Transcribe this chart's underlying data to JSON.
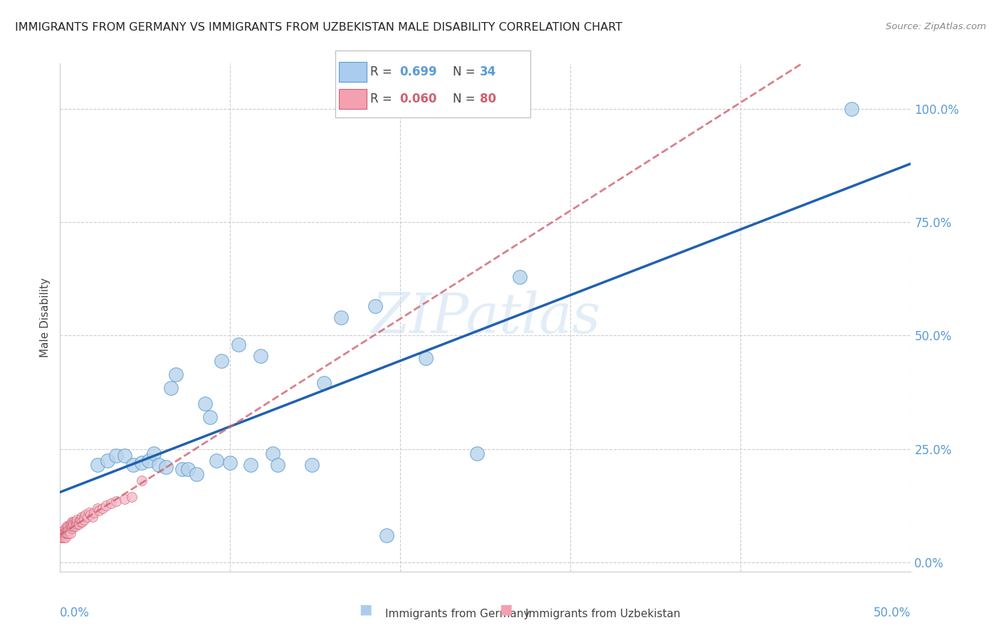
{
  "title": "IMMIGRANTS FROM GERMANY VS IMMIGRANTS FROM UZBEKISTAN MALE DISABILITY CORRELATION CHART",
  "source": "Source: ZipAtlas.com",
  "ylabel_label": "Male Disability",
  "legend_germany": "Immigrants from Germany",
  "legend_uzbekistan": "Immigrants from Uzbekistan",
  "xlim": [
    0.0,
    0.5
  ],
  "ylim": [
    -0.02,
    1.1
  ],
  "xtick_left_label": "0.0%",
  "xtick_right_label": "50.0%",
  "ytick_labels": [
    "0.0%",
    "25.0%",
    "50.0%",
    "75.0%",
    "100.0%"
  ],
  "ytick_vals": [
    0.0,
    0.25,
    0.5,
    0.75,
    1.0
  ],
  "germany_color": "#b8d4ea",
  "germany_edge_color": "#5b9bd5",
  "uzbekistan_color": "#f4b8c8",
  "uzbekistan_edge_color": "#d06070",
  "germany_R": 0.699,
  "germany_N": 34,
  "uzbekistan_R": 0.06,
  "uzbekistan_N": 80,
  "germany_line_color": "#2060b0",
  "uzbekistan_line_color": "#d06070",
  "legend_patch_germany": "#aaccee",
  "legend_patch_uzbekistan": "#f4a0b0",
  "watermark": "ZIPatlas",
  "germany_x": [
    0.022,
    0.028,
    0.033,
    0.038,
    0.043,
    0.048,
    0.052,
    0.055,
    0.058,
    0.062,
    0.065,
    0.068,
    0.072,
    0.075,
    0.08,
    0.085,
    0.088,
    0.092,
    0.095,
    0.1,
    0.105,
    0.112,
    0.118,
    0.125,
    0.128,
    0.148,
    0.155,
    0.165,
    0.185,
    0.192,
    0.215,
    0.245,
    0.27,
    0.465
  ],
  "germany_y": [
    0.215,
    0.225,
    0.235,
    0.235,
    0.215,
    0.22,
    0.225,
    0.24,
    0.215,
    0.21,
    0.385,
    0.415,
    0.205,
    0.205,
    0.195,
    0.35,
    0.32,
    0.225,
    0.445,
    0.22,
    0.48,
    0.215,
    0.455,
    0.24,
    0.215,
    0.215,
    0.395,
    0.54,
    0.565,
    0.06,
    0.45,
    0.24,
    0.63,
    1.0
  ],
  "uzbekistan_x": [
    0.001,
    0.001,
    0.001,
    0.001,
    0.001,
    0.001,
    0.001,
    0.001,
    0.002,
    0.002,
    0.002,
    0.002,
    0.002,
    0.002,
    0.002,
    0.002,
    0.002,
    0.003,
    0.003,
    0.003,
    0.003,
    0.003,
    0.003,
    0.003,
    0.004,
    0.004,
    0.004,
    0.004,
    0.004,
    0.004,
    0.004,
    0.005,
    0.005,
    0.005,
    0.005,
    0.005,
    0.006,
    0.006,
    0.006,
    0.006,
    0.006,
    0.007,
    0.007,
    0.007,
    0.007,
    0.007,
    0.008,
    0.008,
    0.008,
    0.008,
    0.009,
    0.009,
    0.009,
    0.01,
    0.01,
    0.01,
    0.011,
    0.011,
    0.012,
    0.012,
    0.012,
    0.013,
    0.013,
    0.014,
    0.014,
    0.015,
    0.016,
    0.017,
    0.018,
    0.019,
    0.02,
    0.022,
    0.023,
    0.025,
    0.027,
    0.03,
    0.033,
    0.038,
    0.042,
    0.048
  ],
  "uzbekistan_y": [
    0.055,
    0.06,
    0.065,
    0.055,
    0.06,
    0.065,
    0.055,
    0.06,
    0.06,
    0.055,
    0.065,
    0.07,
    0.06,
    0.065,
    0.055,
    0.06,
    0.065,
    0.06,
    0.065,
    0.07,
    0.055,
    0.065,
    0.075,
    0.065,
    0.07,
    0.065,
    0.075,
    0.08,
    0.065,
    0.07,
    0.065,
    0.075,
    0.07,
    0.065,
    0.08,
    0.07,
    0.08,
    0.075,
    0.065,
    0.08,
    0.085,
    0.08,
    0.085,
    0.09,
    0.075,
    0.08,
    0.085,
    0.09,
    0.08,
    0.085,
    0.09,
    0.085,
    0.08,
    0.09,
    0.085,
    0.095,
    0.09,
    0.085,
    0.095,
    0.09,
    0.095,
    0.1,
    0.09,
    0.1,
    0.095,
    0.105,
    0.1,
    0.11,
    0.105,
    0.1,
    0.11,
    0.12,
    0.115,
    0.12,
    0.125,
    0.13,
    0.135,
    0.14,
    0.145,
    0.18
  ]
}
